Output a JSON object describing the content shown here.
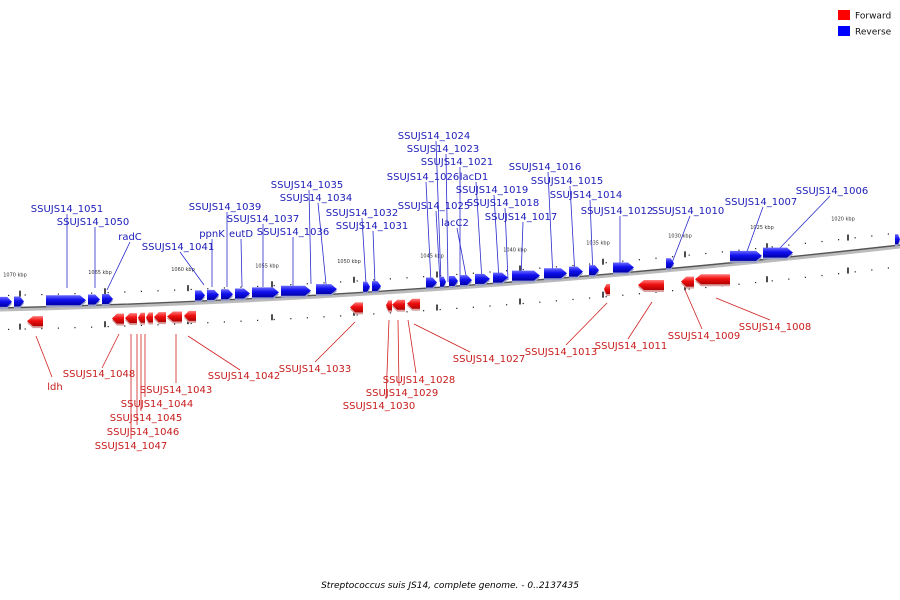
{
  "legend": {
    "forward": {
      "label": "Forward",
      "color": "#ff0000"
    },
    "reverse": {
      "label": "Reverse",
      "color": "#0000ff"
    }
  },
  "caption": "Streptococcus suis JS14, complete genome. - 0..2137435",
  "ticks": [
    "1070 kbp",
    "1065 kbp",
    "1060 kbp",
    "1055 kbp",
    "1050 kbp",
    "1045 kbp",
    "1040 kbp",
    "1035 kbp",
    "1030 kbp",
    "1025 kbp",
    "1020 kbp"
  ],
  "reverse_labels": [
    "SSUJS14_1051",
    "SSUJS14_1050",
    "radC",
    "SSUJS14_1041",
    "SSUJS14_1039",
    "ppnK",
    "eutD",
    "SSUJS14_1037",
    "SSUJS14_1036",
    "SSUJS14_1035",
    "SSUJS14_1034",
    "SSUJS14_1032",
    "SSUJS14_1031",
    "SSUJS14_1026",
    "SSUJS14_1025",
    "SSUJS14_1024",
    "SSUJS14_1023",
    "SSUJS14_1021",
    "lacC2",
    "lacD1",
    "SSUJS14_1019",
    "SSUJS14_1018",
    "SSUJS14_1017",
    "SSUJS14_1016",
    "SSUJS14_1015",
    "SSUJS14_1014",
    "SSUJS14_1012",
    "SSUJS14_1010",
    "SSUJS14_1007",
    "SSUJS14_1006"
  ],
  "forward_labels": [
    "ldh",
    "SSUJS14_1048",
    "SSUJS14_1047",
    "SSUJS14_1046",
    "SSUJS14_1045",
    "SSUJS14_1044",
    "SSUJS14_1043",
    "SSUJS14_1042",
    "SSUJS14_1033",
    "SSUJS14_1030",
    "SSUJS14_1029",
    "SSUJS14_1028",
    "SSUJS14_1027",
    "SSUJS14_1013",
    "SSUJS14_1011",
    "SSUJS14_1009",
    "SSUJS14_1008"
  ]
}
